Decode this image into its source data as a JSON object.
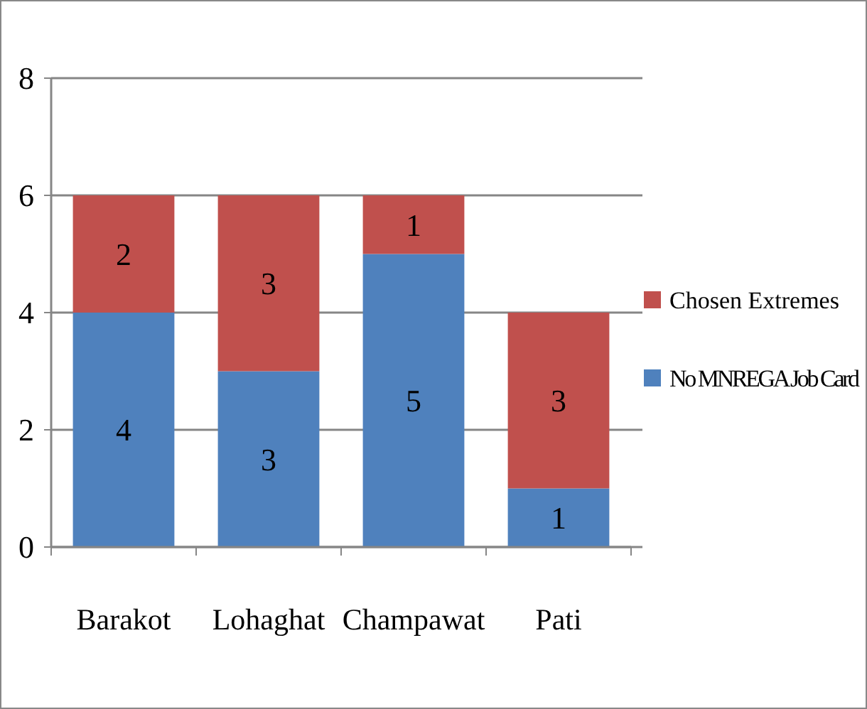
{
  "chart_data": {
    "type": "bar",
    "stacked": true,
    "categories": [
      "Barakot",
      "Lohaghat",
      "Champawat",
      "Pati"
    ],
    "series": [
      {
        "name": "No MNREGA Job Card",
        "color": "#4f81bd",
        "values": [
          4,
          3,
          5,
          1
        ]
      },
      {
        "name": "Chosen Extremes",
        "color": "#c0504d",
        "values": [
          2,
          3,
          1,
          3
        ]
      }
    ],
    "ylim": [
      0,
      8
    ],
    "yticks": [
      0,
      2,
      4,
      6,
      8
    ],
    "grid": "y",
    "legend": "right",
    "data_labels": true
  }
}
